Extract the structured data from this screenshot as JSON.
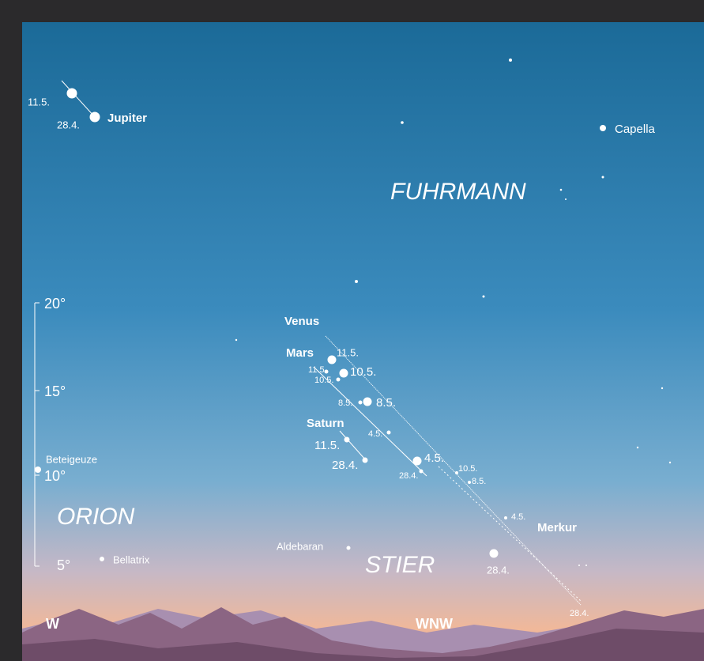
{
  "altitude_scale": [
    "20°",
    "15°",
    "10°",
    "5°"
  ],
  "directions": [
    "W",
    "WNW"
  ],
  "constellations": [
    "FUHRMANN",
    "ORION",
    "STIER"
  ],
  "stars": [
    "Capella",
    "Beteigeuze",
    "Bellatrix",
    "Aldebaran"
  ],
  "planets": [
    {
      "name": "Jupiter",
      "dates": [
        "11.5.",
        "28.4."
      ]
    },
    {
      "name": "Venus",
      "dates": [
        "11.5.",
        "10.5.",
        "8.5.",
        "4.5.",
        "28.4."
      ]
    },
    {
      "name": "Mars",
      "dates": [
        "11.5.",
        "10.5.",
        "8.5.",
        "4.5.",
        "28.4."
      ]
    },
    {
      "name": "Saturn",
      "dates": [
        "11.5.",
        "28.4."
      ]
    },
    {
      "name": "Merkur",
      "dates": [
        "10.5.",
        "8.5.",
        "4.5.",
        "28.4."
      ]
    }
  ]
}
